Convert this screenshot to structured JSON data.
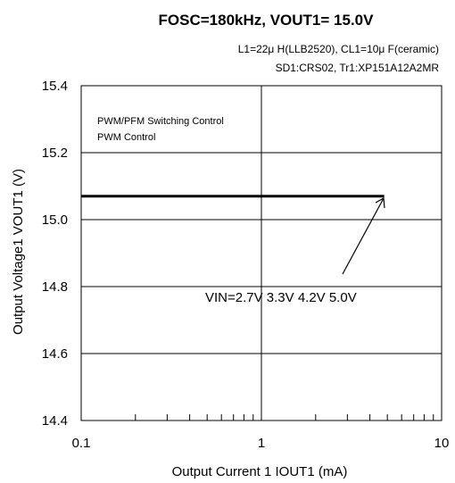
{
  "chart_data": {
    "type": "line",
    "title": "FOSC=180kHz, VOUT1= 15.0V",
    "subtitle_lines": [
      "L1=22μ H(LLB2520), CL1=10μ F(ceramic)",
      "SD1:CRS02, Tr1:XP151A12A2MR"
    ],
    "xlabel": "Output Current 1 IOUT1 (mA)",
    "ylabel": "Output Voltage1  VOUT1 (V)",
    "x_scale": "log",
    "xlim": [
      0.1,
      10
    ],
    "ylim": [
      14.4,
      15.4
    ],
    "x_ticks": [
      0.1,
      1,
      10
    ],
    "x_tick_labels": [
      "0.1",
      "1",
      "10"
    ],
    "y_ticks": [
      14.4,
      14.6,
      14.8,
      15.0,
      15.2,
      15.4
    ],
    "y_tick_labels": [
      "14.4",
      "14.6",
      "14.8",
      "15.0",
      "15.2",
      "15.4"
    ],
    "grid": true,
    "legend_lines": [
      "PWM/PFM Switching Control",
      "PWM  Control"
    ],
    "legend_position": "top-left",
    "annotation": "VIN=2.7V 3.3V 4.2V 5.0V",
    "series": [
      {
        "x": [
          0.1,
          4.8
        ],
        "y": [
          15.07,
          15.07
        ]
      }
    ]
  }
}
